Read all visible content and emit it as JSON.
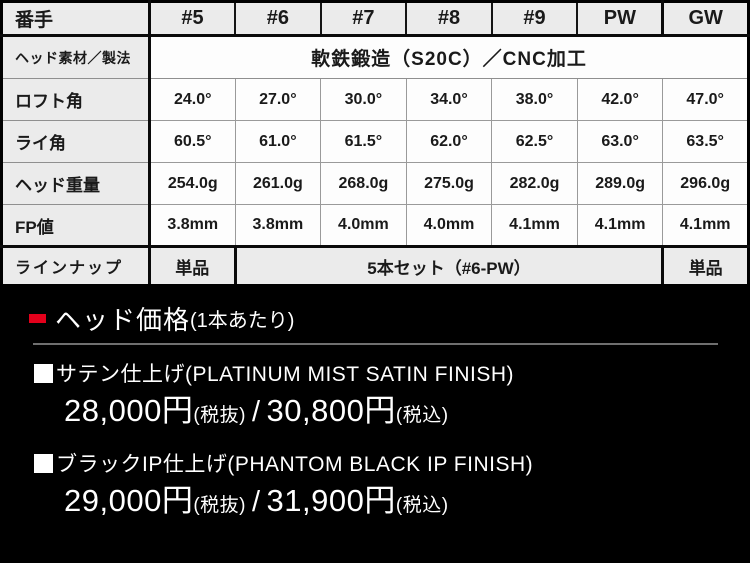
{
  "colors": {
    "accent_red": "#e3001b",
    "cell_gray": "#ebebeb",
    "cell_white": "#fdfdfd",
    "grid_thin": "#9a9a9a",
    "grid_thick": "#0a0a0a",
    "divider_gray": "#6f6f6f",
    "background": "#000000",
    "text_light": "#ffffff"
  },
  "table": {
    "corner_label": "番手",
    "columns": [
      "#5",
      "#6",
      "#7",
      "#8",
      "#9",
      "PW",
      "GW"
    ],
    "material_label": "ヘッド素材／製法",
    "material_value": "軟鉄鍛造（S20C）／CNC加工",
    "rows": [
      {
        "label": "ロフト角",
        "values": [
          "24.0°",
          "27.0°",
          "30.0°",
          "34.0°",
          "38.0°",
          "42.0°",
          "47.0°"
        ]
      },
      {
        "label": "ライ角",
        "values": [
          "60.5°",
          "61.0°",
          "61.5°",
          "62.0°",
          "62.5°",
          "63.0°",
          "63.5°"
        ]
      },
      {
        "label": "ヘッド重量",
        "values": [
          "254.0g",
          "261.0g",
          "268.0g",
          "275.0g",
          "282.0g",
          "289.0g",
          "296.0g"
        ]
      },
      {
        "label": "FP値",
        "values": [
          "3.8mm",
          "3.8mm",
          "4.0mm",
          "4.0mm",
          "4.1mm",
          "4.1mm",
          "4.1mm"
        ]
      }
    ],
    "lineup_label": "ラインナップ",
    "lineup_first": "単品",
    "lineup_middle": "5本セット（#6-PW）",
    "lineup_last": "単品"
  },
  "pricing": {
    "heading": "ヘッド価格",
    "heading_note": "(1本あたり)",
    "yen": "円",
    "tax_excluded": "(税抜)",
    "tax_included": "(税込)",
    "separator": "/",
    "items": [
      {
        "finish": "サテン仕上げ(PLATINUM MIST SATIN FINISH)",
        "price_excl": "28,000",
        "price_incl": "30,800"
      },
      {
        "finish": "ブラックIP仕上げ(PHANTOM BLACK IP FINISH)",
        "price_excl": "29,000",
        "price_incl": "31,900"
      }
    ]
  }
}
